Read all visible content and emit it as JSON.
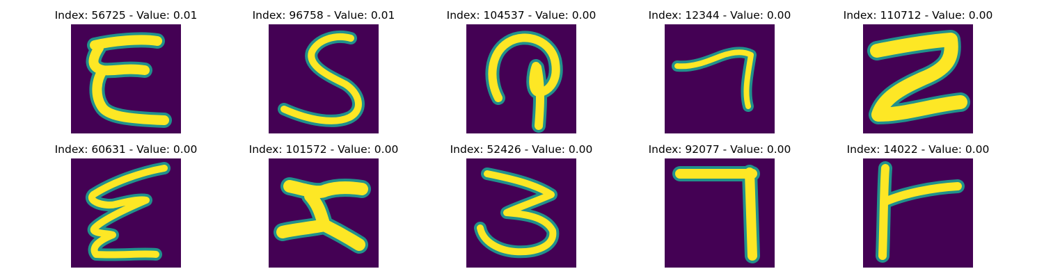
{
  "colors": {
    "background": "#440154",
    "stroke_edge": "#21918c",
    "stroke_core": "#fde725"
  },
  "panels": [
    {
      "title": "Index: 56725 - Value: 0.01",
      "glyph": "E-script"
    },
    {
      "title": "Index: 96758 - Value: 0.01",
      "glyph": "S"
    },
    {
      "title": "Index: 104537 - Value: 0.00",
      "glyph": "hook-loop"
    },
    {
      "title": "Index: 12344 - Value: 0.00",
      "glyph": "seven-slanted"
    },
    {
      "title": "Index: 110712 - Value: 0.00",
      "glyph": "Z-thick"
    },
    {
      "title": "Index: 60631 - Value: 0.00",
      "glyph": "E-script"
    },
    {
      "title": "Index: 101572 - Value: 0.00",
      "glyph": "H-rotated"
    },
    {
      "title": "Index: 52426 - Value: 0.00",
      "glyph": "three-rotated"
    },
    {
      "title": "Index: 92077 - Value: 0.00",
      "glyph": "seven-right-angle"
    },
    {
      "title": "Index: 14022 - Value: 0.00",
      "glyph": "F-rotated"
    }
  ]
}
